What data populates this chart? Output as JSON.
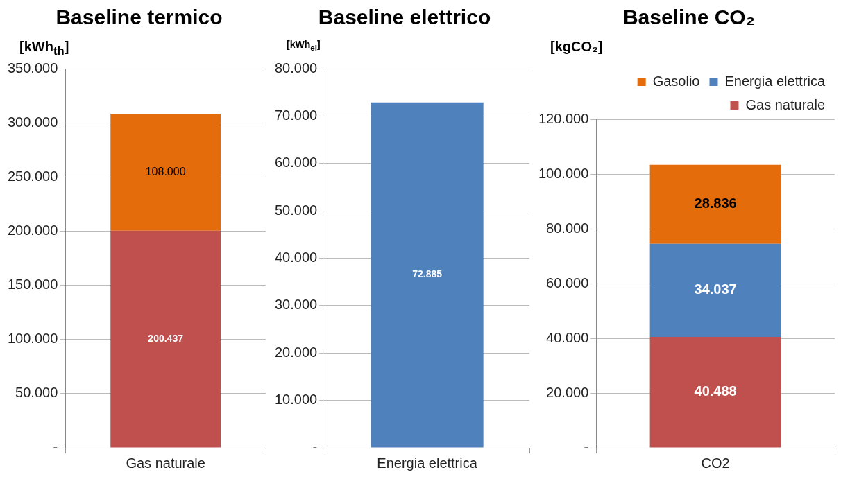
{
  "chart_data": [
    {
      "type": "bar",
      "title": "Baseline termico",
      "ylabel": "[kWh$_{th}$]",
      "categories": [
        "Gas naturale"
      ],
      "stacked": true,
      "grid": "y",
      "legend": false,
      "series": [
        {
          "color": "#c0504d",
          "values": [
            200437
          ],
          "value_labels": [
            "200.437"
          ]
        },
        {
          "color": "#e46c0a",
          "values": [
            108000
          ],
          "value_labels": [
            "108.000"
          ]
        }
      ],
      "ylim": [
        0,
        350000
      ],
      "yticks": [
        {
          "value": 0,
          "label": "-"
        },
        {
          "value": 50000,
          "label": "50.000"
        },
        {
          "value": 100000,
          "label": "100.000"
        },
        {
          "value": 150000,
          "label": "150.000"
        },
        {
          "value": 200000,
          "label": "200.000"
        },
        {
          "value": 250000,
          "label": "250.000"
        },
        {
          "value": 300000,
          "label": "300.000"
        },
        {
          "value": 350000,
          "label": "350.000"
        }
      ]
    },
    {
      "type": "bar",
      "title": "Baseline elettrico",
      "ylabel": "[kWh$_{el}$]",
      "categories": [
        "Energia elettrica"
      ],
      "stacked": true,
      "grid": "y",
      "legend": false,
      "series": [
        {
          "color": "#4f81bd",
          "values": [
            72885
          ],
          "value_labels": [
            "72.885"
          ]
        }
      ],
      "ylim": [
        0,
        80000
      ],
      "yticks": [
        {
          "value": 0,
          "label": "-"
        },
        {
          "value": 10000,
          "label": "10.000"
        },
        {
          "value": 20000,
          "label": "20.000"
        },
        {
          "value": 30000,
          "label": "30.000"
        },
        {
          "value": 40000,
          "label": "40.000"
        },
        {
          "value": 50000,
          "label": "50.000"
        },
        {
          "value": 60000,
          "label": "60.000"
        },
        {
          "value": 70000,
          "label": "70.000"
        },
        {
          "value": 80000,
          "label": "80.000"
        }
      ]
    },
    {
      "type": "bar",
      "title": "Baseline CO₂",
      "ylabel": "[kgCO₂]",
      "categories": [
        "CO2"
      ],
      "stacked": true,
      "grid": "y",
      "legend": "top right",
      "series": [
        {
          "name": "Gas naturale",
          "color": "#c0504d",
          "values": [
            40488
          ],
          "value_labels": [
            "40.488"
          ]
        },
        {
          "name": "Energia elettrica",
          "color": "#4f81bd",
          "values": [
            34037
          ],
          "value_labels": [
            "34.037"
          ]
        },
        {
          "name": "Gasolio",
          "color": "#e46c0a",
          "values": [
            28836
          ],
          "value_labels": [
            "28.836"
          ]
        }
      ],
      "ylim": [
        0,
        120000
      ],
      "yticks": [
        {
          "value": 0,
          "label": "-"
        },
        {
          "value": 20000,
          "label": "20.000"
        },
        {
          "value": 40000,
          "label": "40.000"
        },
        {
          "value": 60000,
          "label": "60.000"
        },
        {
          "value": 80000,
          "label": "80.000"
        },
        {
          "value": 100000,
          "label": "100.000"
        },
        {
          "value": 120000,
          "label": "120.000"
        }
      ]
    }
  ]
}
